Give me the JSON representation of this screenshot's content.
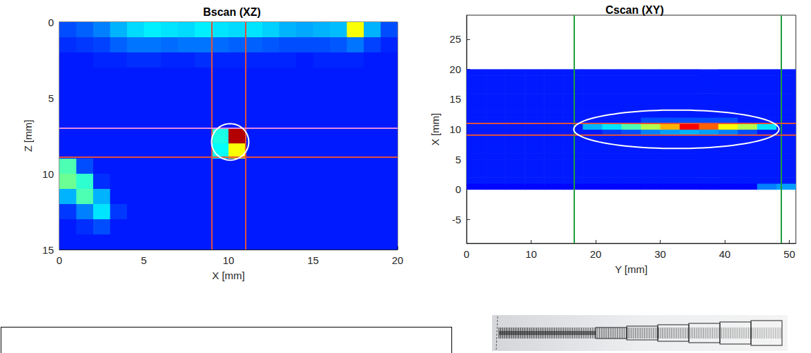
{
  "chart_data": [
    {
      "type": "heatmap",
      "title": "Bscan (XZ)",
      "x_label": "X [mm]",
      "y_label": "Z [mm]",
      "xlim": [
        0,
        20
      ],
      "xticks": [
        0,
        5,
        10,
        15,
        20
      ],
      "ylim": [
        15,
        0
      ],
      "yticks": [
        0,
        5,
        10,
        15
      ],
      "grid": false,
      "zlim": [
        0,
        1
      ],
      "x_edges": [
        0,
        1,
        2,
        3,
        4,
        5,
        6,
        7,
        8,
        9,
        10,
        11,
        12,
        13,
        14,
        15,
        16,
        17,
        18,
        19,
        20
      ],
      "y_edges": [
        0,
        1,
        2,
        3,
        4,
        5,
        6,
        7,
        8,
        9,
        10,
        11,
        12,
        13,
        14,
        15
      ],
      "cells": [
        [
          0.2,
          0.22,
          0.25,
          0.3,
          0.34,
          0.36,
          0.35,
          0.34,
          0.36,
          0.35,
          0.34,
          0.35,
          0.33,
          0.3,
          0.29,
          0.3,
          0.31,
          0.62,
          0.3,
          0.2
        ],
        [
          0.17,
          0.18,
          0.19,
          0.22,
          0.24,
          0.24,
          0.23,
          0.24,
          0.24,
          0.23,
          0.22,
          0.22,
          0.21,
          0.2,
          0.2,
          0.2,
          0.21,
          0.24,
          0.19,
          0.16
        ],
        [
          0.15,
          0.15,
          0.16,
          0.16,
          0.17,
          0.17,
          0.16,
          0.16,
          0.17,
          0.16,
          0.16,
          0.16,
          0.16,
          0.16,
          0.15,
          0.16,
          0.16,
          0.16,
          0.15,
          0.15
        ],
        [
          0.15,
          0.15,
          0.15,
          0.15,
          0.15,
          0.15,
          0.15,
          0.15,
          0.15,
          0.15,
          0.15,
          0.15,
          0.15,
          0.15,
          0.15,
          0.15,
          0.15,
          0.15,
          0.15,
          0.15
        ],
        [
          0.15,
          0.15,
          0.15,
          0.15,
          0.15,
          0.15,
          0.15,
          0.15,
          0.15,
          0.15,
          0.15,
          0.15,
          0.15,
          0.15,
          0.15,
          0.15,
          0.15,
          0.15,
          0.15,
          0.15
        ],
        [
          0.15,
          0.15,
          0.15,
          0.15,
          0.15,
          0.15,
          0.15,
          0.15,
          0.15,
          0.15,
          0.15,
          0.15,
          0.15,
          0.15,
          0.15,
          0.15,
          0.15,
          0.15,
          0.15,
          0.15
        ],
        [
          0.15,
          0.15,
          0.15,
          0.15,
          0.15,
          0.15,
          0.15,
          0.15,
          0.15,
          0.15,
          0.15,
          0.15,
          0.15,
          0.15,
          0.15,
          0.15,
          0.15,
          0.15,
          0.15,
          0.15
        ],
        [
          0.15,
          0.15,
          0.15,
          0.15,
          0.15,
          0.15,
          0.15,
          0.15,
          0.15,
          0.4,
          0.95,
          0.15,
          0.15,
          0.15,
          0.15,
          0.15,
          0.15,
          0.15,
          0.15,
          0.15
        ],
        [
          0.15,
          0.15,
          0.15,
          0.15,
          0.15,
          0.15,
          0.15,
          0.15,
          0.15,
          0.38,
          0.62,
          0.15,
          0.15,
          0.15,
          0.15,
          0.15,
          0.15,
          0.15,
          0.15,
          0.15
        ],
        [
          0.45,
          0.2,
          0.15,
          0.15,
          0.15,
          0.15,
          0.15,
          0.15,
          0.15,
          0.15,
          0.15,
          0.15,
          0.15,
          0.15,
          0.15,
          0.15,
          0.15,
          0.15,
          0.15,
          0.15
        ],
        [
          0.48,
          0.42,
          0.17,
          0.15,
          0.15,
          0.15,
          0.15,
          0.15,
          0.15,
          0.15,
          0.15,
          0.15,
          0.15,
          0.15,
          0.15,
          0.15,
          0.15,
          0.15,
          0.15,
          0.15
        ],
        [
          0.3,
          0.45,
          0.3,
          0.15,
          0.15,
          0.15,
          0.15,
          0.15,
          0.15,
          0.15,
          0.15,
          0.15,
          0.15,
          0.15,
          0.15,
          0.15,
          0.15,
          0.15,
          0.15,
          0.15
        ],
        [
          0.18,
          0.25,
          0.35,
          0.18,
          0.15,
          0.15,
          0.15,
          0.15,
          0.15,
          0.15,
          0.15,
          0.15,
          0.15,
          0.15,
          0.15,
          0.15,
          0.15,
          0.15,
          0.15,
          0.15
        ],
        [
          0.15,
          0.17,
          0.2,
          0.15,
          0.15,
          0.15,
          0.15,
          0.15,
          0.15,
          0.15,
          0.15,
          0.15,
          0.15,
          0.15,
          0.15,
          0.15,
          0.15,
          0.15,
          0.15,
          0.15
        ],
        [
          0.15,
          0.15,
          0.15,
          0.15,
          0.15,
          0.15,
          0.15,
          0.15,
          0.15,
          0.15,
          0.15,
          0.15,
          0.15,
          0.15,
          0.15,
          0.15,
          0.15,
          0.15,
          0.15,
          0.15
        ]
      ],
      "lines": [
        {
          "axis": "x",
          "value": 9,
          "color": "#e0503c"
        },
        {
          "axis": "x",
          "value": 11,
          "color": "#e0503c"
        },
        {
          "axis": "y",
          "value": 7,
          "color": "#e08ae6"
        },
        {
          "axis": "y",
          "value": 8.9,
          "color": "#e0503c"
        }
      ],
      "ellipses": [
        {
          "center": [
            10.1,
            7.9
          ],
          "radius": [
            1.1,
            1.2
          ],
          "color": "#ffffff"
        }
      ]
    },
    {
      "type": "heatmap",
      "title": "Cscan (XY)",
      "x_label": "Y [mm]",
      "y_label": "X [mm]",
      "xlim": [
        0,
        51
      ],
      "xticks": [
        0,
        10,
        20,
        30,
        40,
        50
      ],
      "ylim": [
        -9,
        29
      ],
      "yticks": [
        -5,
        0,
        5,
        10,
        15,
        20,
        25
      ],
      "grid": false,
      "zlim": [
        0,
        1
      ],
      "x_edges": [
        0,
        3,
        6,
        9,
        12,
        15,
        18,
        21,
        24,
        27,
        30,
        33,
        36,
        39,
        42,
        45,
        48,
        51
      ],
      "y_edges": [
        0,
        1,
        2,
        3,
        4,
        5,
        6,
        7,
        8,
        9,
        10,
        11,
        12,
        13,
        14,
        15,
        16,
        17,
        18,
        19,
        20
      ],
      "cells": [
        [
          0.13,
          0.13,
          0.13,
          0.13,
          0.13,
          0.13,
          0.13,
          0.13,
          0.13,
          0.13,
          0.13,
          0.13,
          0.13,
          0.13,
          0.13,
          0.25,
          0.28
        ],
        [
          0.15,
          0.15,
          0.15,
          0.15,
          0.15,
          0.15,
          0.15,
          0.15,
          0.15,
          0.15,
          0.15,
          0.15,
          0.15,
          0.15,
          0.15,
          0.15,
          0.15
        ],
        [
          0.15,
          0.15,
          0.15,
          0.15,
          0.15,
          0.15,
          0.15,
          0.15,
          0.15,
          0.15,
          0.15,
          0.15,
          0.15,
          0.15,
          0.15,
          0.15,
          0.15
        ],
        [
          0.15,
          0.15,
          0.15,
          0.15,
          0.15,
          0.15,
          0.15,
          0.15,
          0.15,
          0.15,
          0.15,
          0.15,
          0.15,
          0.15,
          0.15,
          0.15,
          0.15
        ],
        [
          0.15,
          0.15,
          0.15,
          0.15,
          0.15,
          0.15,
          0.15,
          0.15,
          0.15,
          0.15,
          0.15,
          0.15,
          0.15,
          0.15,
          0.15,
          0.15,
          0.15
        ],
        [
          0.15,
          0.15,
          0.15,
          0.15,
          0.15,
          0.15,
          0.15,
          0.15,
          0.15,
          0.15,
          0.15,
          0.15,
          0.15,
          0.15,
          0.15,
          0.15,
          0.15
        ],
        [
          0.15,
          0.15,
          0.15,
          0.15,
          0.15,
          0.15,
          0.15,
          0.15,
          0.15,
          0.15,
          0.15,
          0.15,
          0.15,
          0.15,
          0.15,
          0.15,
          0.15
        ],
        [
          0.15,
          0.15,
          0.15,
          0.15,
          0.15,
          0.15,
          0.15,
          0.15,
          0.15,
          0.15,
          0.15,
          0.15,
          0.15,
          0.15,
          0.15,
          0.15,
          0.15
        ],
        [
          0.15,
          0.15,
          0.15,
          0.15,
          0.15,
          0.15,
          0.15,
          0.15,
          0.15,
          0.15,
          0.15,
          0.15,
          0.15,
          0.15,
          0.15,
          0.15,
          0.15
        ],
        [
          0.15,
          0.15,
          0.15,
          0.15,
          0.15,
          0.15,
          0.15,
          0.18,
          0.2,
          0.25,
          0.28,
          0.3,
          0.28,
          0.25,
          0.2,
          0.15,
          0.15
        ],
        [
          0.15,
          0.15,
          0.15,
          0.15,
          0.15,
          0.15,
          0.3,
          0.35,
          0.45,
          0.55,
          0.7,
          0.88,
          0.78,
          0.62,
          0.55,
          0.35,
          0.15
        ],
        [
          0.15,
          0.15,
          0.15,
          0.15,
          0.15,
          0.15,
          0.15,
          0.15,
          0.15,
          0.2,
          0.2,
          0.2,
          0.2,
          0.2,
          0.15,
          0.15,
          0.15
        ],
        [
          0.15,
          0.15,
          0.15,
          0.15,
          0.15,
          0.15,
          0.15,
          0.15,
          0.15,
          0.15,
          0.15,
          0.15,
          0.15,
          0.15,
          0.15,
          0.15,
          0.15
        ],
        [
          0.15,
          0.15,
          0.15,
          0.15,
          0.15,
          0.15,
          0.15,
          0.15,
          0.15,
          0.15,
          0.15,
          0.15,
          0.15,
          0.15,
          0.15,
          0.15,
          0.15
        ],
        [
          0.15,
          0.15,
          0.15,
          0.15,
          0.15,
          0.15,
          0.15,
          0.15,
          0.15,
          0.15,
          0.15,
          0.15,
          0.15,
          0.15,
          0.15,
          0.15,
          0.15
        ],
        [
          0.15,
          0.15,
          0.15,
          0.15,
          0.15,
          0.15,
          0.15,
          0.15,
          0.15,
          0.15,
          0.15,
          0.15,
          0.15,
          0.15,
          0.15,
          0.15,
          0.15
        ],
        [
          0.15,
          0.15,
          0.15,
          0.15,
          0.15,
          0.15,
          0.15,
          0.15,
          0.15,
          0.15,
          0.15,
          0.15,
          0.15,
          0.15,
          0.15,
          0.15,
          0.15
        ],
        [
          0.15,
          0.15,
          0.15,
          0.15,
          0.15,
          0.15,
          0.15,
          0.15,
          0.15,
          0.15,
          0.15,
          0.15,
          0.15,
          0.15,
          0.15,
          0.15,
          0.15
        ],
        [
          0.15,
          0.15,
          0.15,
          0.15,
          0.15,
          0.15,
          0.15,
          0.15,
          0.15,
          0.15,
          0.15,
          0.15,
          0.15,
          0.15,
          0.15,
          0.15,
          0.15
        ],
        [
          0.15,
          0.15,
          0.15,
          0.15,
          0.15,
          0.15,
          0.15,
          0.15,
          0.15,
          0.15,
          0.15,
          0.15,
          0.15,
          0.15,
          0.15,
          0.15,
          0.15
        ]
      ],
      "lines": [
        {
          "axis": "x",
          "value": 16.6,
          "color": "#1f9e3a"
        },
        {
          "axis": "x",
          "value": 48.7,
          "color": "#1f9e3a"
        },
        {
          "axis": "y",
          "value": 9,
          "color": "#e0503c"
        },
        {
          "axis": "y",
          "value": 11,
          "color": "#e0503c"
        }
      ],
      "ellipses": [
        {
          "center": [
            32.5,
            10
          ],
          "radius": [
            15.9,
            3.2
          ],
          "color": "#ffffff"
        }
      ]
    }
  ]
}
